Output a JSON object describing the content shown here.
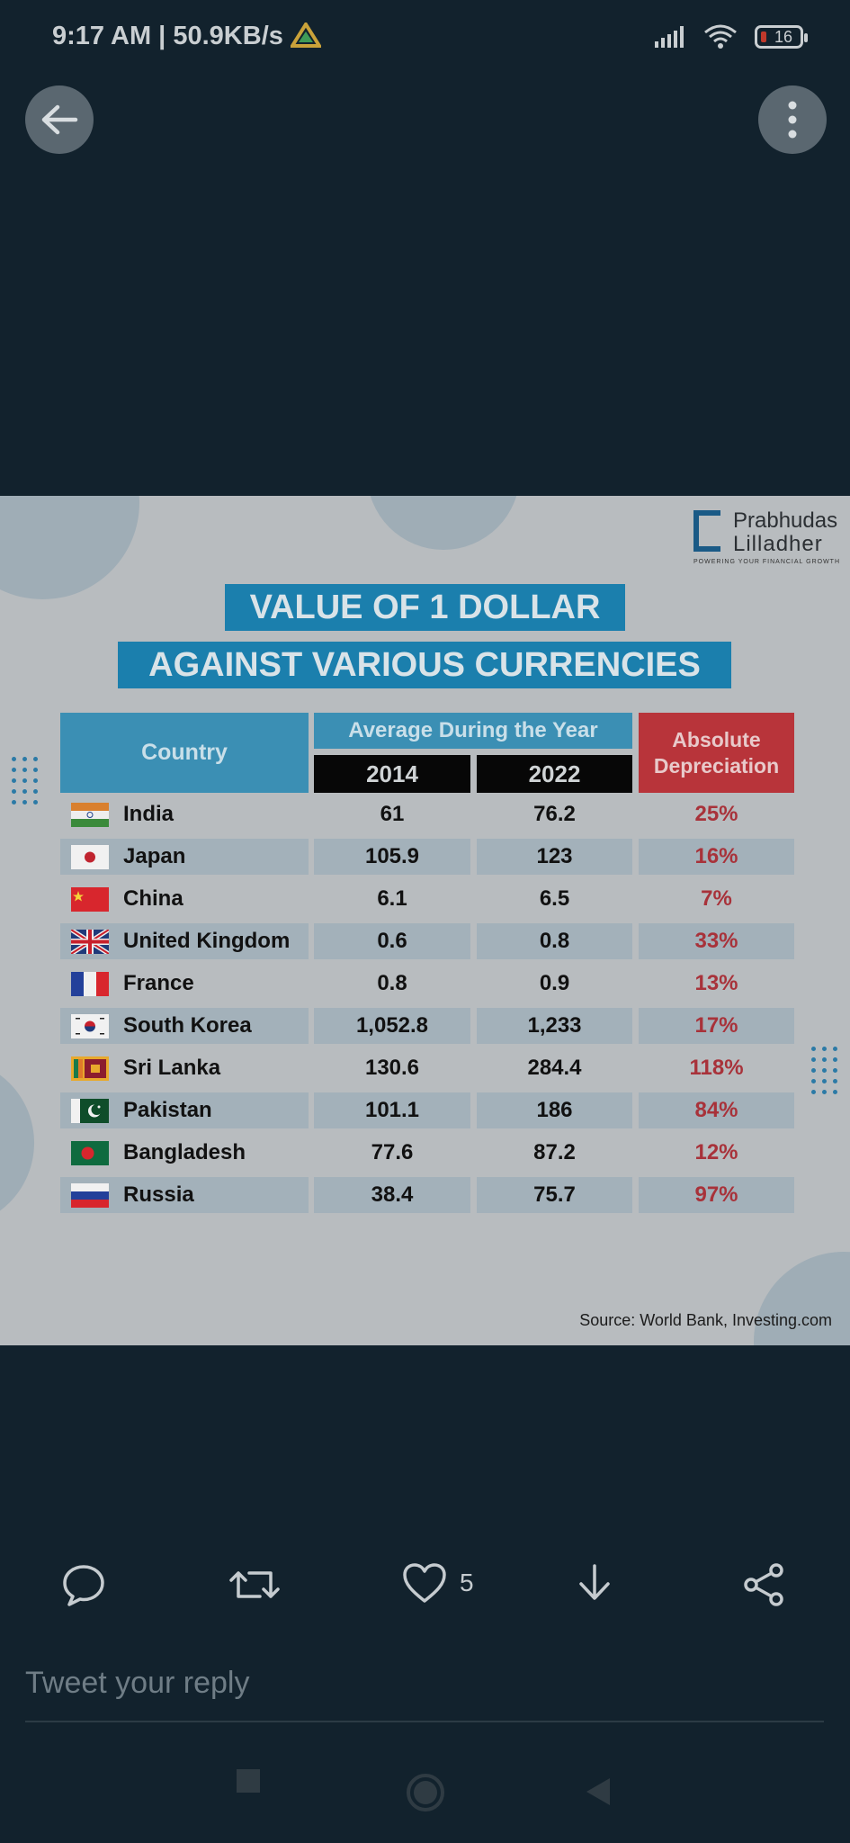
{
  "status": {
    "time": "9:17 AM",
    "speed": "50.9KB/s",
    "battery": "16",
    "icons": [
      "drive-icon",
      "signal-icon",
      "wifi-icon",
      "battery-icon"
    ]
  },
  "toolbar": {
    "back_icon": "arrow-left-icon",
    "more_icon": "vertical-dots-icon"
  },
  "image": {
    "logo": {
      "line1": "Prabhudas",
      "line2": "Lilladher",
      "tagline": "POWERING YOUR FINANCIAL GROWTH"
    },
    "title_line1": "VALUE OF 1 DOLLAR",
    "title_line2": "AGAINST VARIOUS CURRENCIES",
    "table": {
      "header_country": "Country",
      "header_avg": "Average During the Year",
      "header_year1": "2014",
      "header_year2": "2022",
      "header_dep_line1": "Absolute",
      "header_dep_line2": "Depreciation",
      "rows": [
        {
          "country": "India",
          "y2014": "61",
          "y2022": "76.2",
          "dep": "25%"
        },
        {
          "country": "Japan",
          "y2014": "105.9",
          "y2022": "123",
          "dep": "16%"
        },
        {
          "country": "China",
          "y2014": "6.1",
          "y2022": "6.5",
          "dep": "7%"
        },
        {
          "country": "United Kingdom",
          "y2014": "0.6",
          "y2022": "0.8",
          "dep": "33%"
        },
        {
          "country": "France",
          "y2014": "0.8",
          "y2022": "0.9",
          "dep": "13%"
        },
        {
          "country": "South Korea",
          "y2014": "1,052.8",
          "y2022": "1,233",
          "dep": "17%"
        },
        {
          "country": "Sri Lanka",
          "y2014": "130.6",
          "y2022": "284.4",
          "dep": "118%"
        },
        {
          "country": "Pakistan",
          "y2014": "101.1",
          "y2022": "186",
          "dep": "84%"
        },
        {
          "country": "Bangladesh",
          "y2014": "77.6",
          "y2022": "87.2",
          "dep": "12%"
        },
        {
          "country": "Russia",
          "y2014": "38.4",
          "y2022": "75.7",
          "dep": "97%"
        }
      ]
    },
    "source": "Source: World Bank, Investing.com"
  },
  "actions": {
    "reply_icon": "speech-bubble-icon",
    "retweet_icon": "retweet-icon",
    "like_icon": "heart-icon",
    "like_count": "5",
    "download_icon": "download-icon",
    "share_icon": "share-icon"
  },
  "reply": {
    "placeholder": "Tweet your reply"
  },
  "nav": {
    "recents": "square-icon",
    "home": "circle-icon",
    "back": "triangle-back-icon"
  }
}
